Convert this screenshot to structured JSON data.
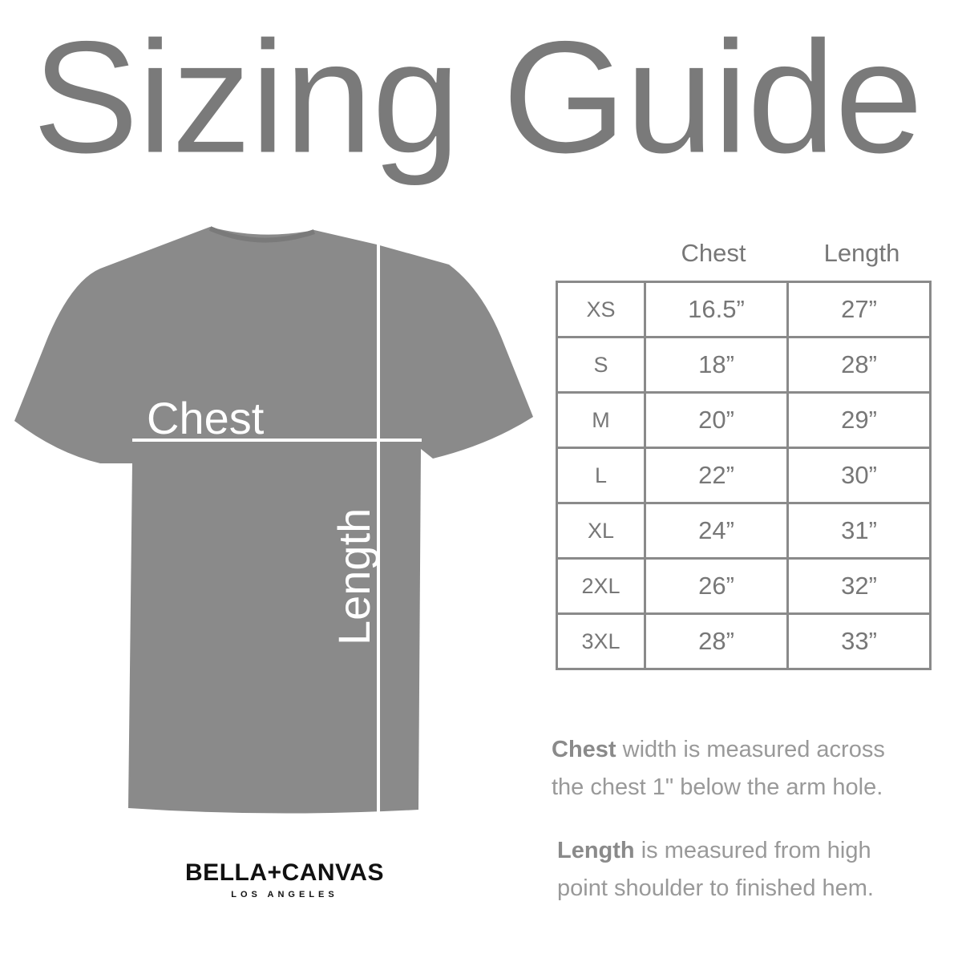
{
  "title": "Sizing Guide",
  "shirt": {
    "chest_label": "Chest",
    "length_label": "Length",
    "color": "#8a8a8a"
  },
  "table": {
    "headers": [
      "Chest",
      "Length"
    ],
    "rows": [
      {
        "size": "XS",
        "chest": "16.5”",
        "length": "27”"
      },
      {
        "size": "S",
        "chest": "18”",
        "length": "28”"
      },
      {
        "size": "M",
        "chest": "20”",
        "length": "29”"
      },
      {
        "size": "L",
        "chest": "22”",
        "length": "30”"
      },
      {
        "size": "XL",
        "chest": "24”",
        "length": "31”"
      },
      {
        "size": "2XL",
        "chest": "26”",
        "length": "32”"
      },
      {
        "size": "3XL",
        "chest": "28”",
        "length": "33”"
      }
    ]
  },
  "notes": {
    "chest_bold": "Chest",
    "chest_line1": " width is measured across",
    "chest_line2": "the chest 1\" below the arm hole.",
    "length_bold": "Length",
    "length_line1": " is measured from high",
    "length_line2": "point shoulder to finished hem."
  },
  "logo": {
    "brand": "BELLA+CANVAS",
    "city": "LOS ANGELES"
  }
}
